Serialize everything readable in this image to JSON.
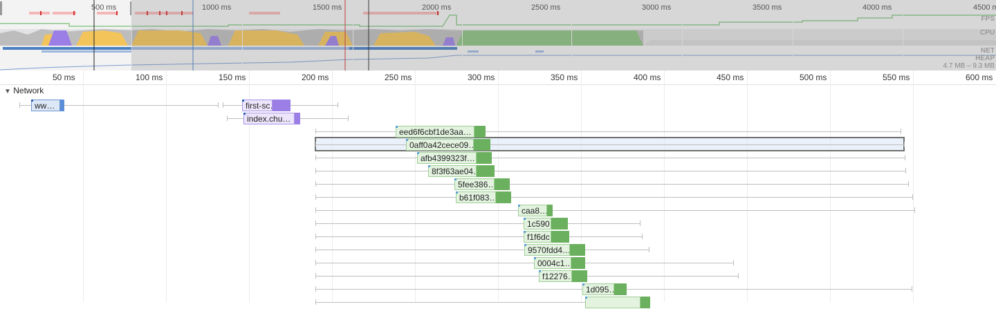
{
  "overview": {
    "ticks": [
      "500 ms",
      "1000 ms",
      "1500 ms",
      "2000 ms",
      "2500 ms",
      "3000 ms",
      "3500 ms",
      "4000 ms",
      "4500 ms"
    ],
    "tracks": [
      "FPS",
      "CPU",
      "NET",
      "HEAP"
    ],
    "memory_range": "4.7 MB – 9.3 MB",
    "colors": {
      "fps": "#4caf50",
      "scripting": "#f4c150",
      "rendering": "#9b7fe6",
      "painting": "#72b36b",
      "other": "#c8c8c8",
      "net": "#4a7fc1"
    }
  },
  "ruler": {
    "ticks": [
      "50 ms",
      "100 ms",
      "150 ms",
      "200 ms",
      "250 ms",
      "300 ms",
      "350 ms",
      "400 ms",
      "450 ms",
      "500 ms",
      "550 ms",
      "600 ms"
    ]
  },
  "network": {
    "header": "Network",
    "requests": [
      {
        "label": "ww…",
        "type": "document"
      },
      {
        "label": "first-sc…",
        "type": "script"
      },
      {
        "label": "index.chu…",
        "type": "script"
      },
      {
        "label": "eed6f6cbf1de3aa…",
        "type": "image"
      },
      {
        "label": "0aff0a42cece09…",
        "type": "image",
        "selected": true
      },
      {
        "label": "afb4399323f…",
        "type": "image"
      },
      {
        "label": "8f3f63ae04…",
        "type": "image"
      },
      {
        "label": "5fee386…",
        "type": "image"
      },
      {
        "label": "b61f083…",
        "type": "image"
      },
      {
        "label": "caa8…",
        "type": "image"
      },
      {
        "label": "1c590…",
        "type": "image"
      },
      {
        "label": "f1f6dc…",
        "type": "image"
      },
      {
        "label": "9570fdd4…",
        "type": "image"
      },
      {
        "label": "0004c1…",
        "type": "image"
      },
      {
        "label": "f12276…",
        "type": "image"
      },
      {
        "label": "1d095…",
        "type": "image"
      },
      {
        "label": "",
        "type": "image"
      }
    ]
  }
}
